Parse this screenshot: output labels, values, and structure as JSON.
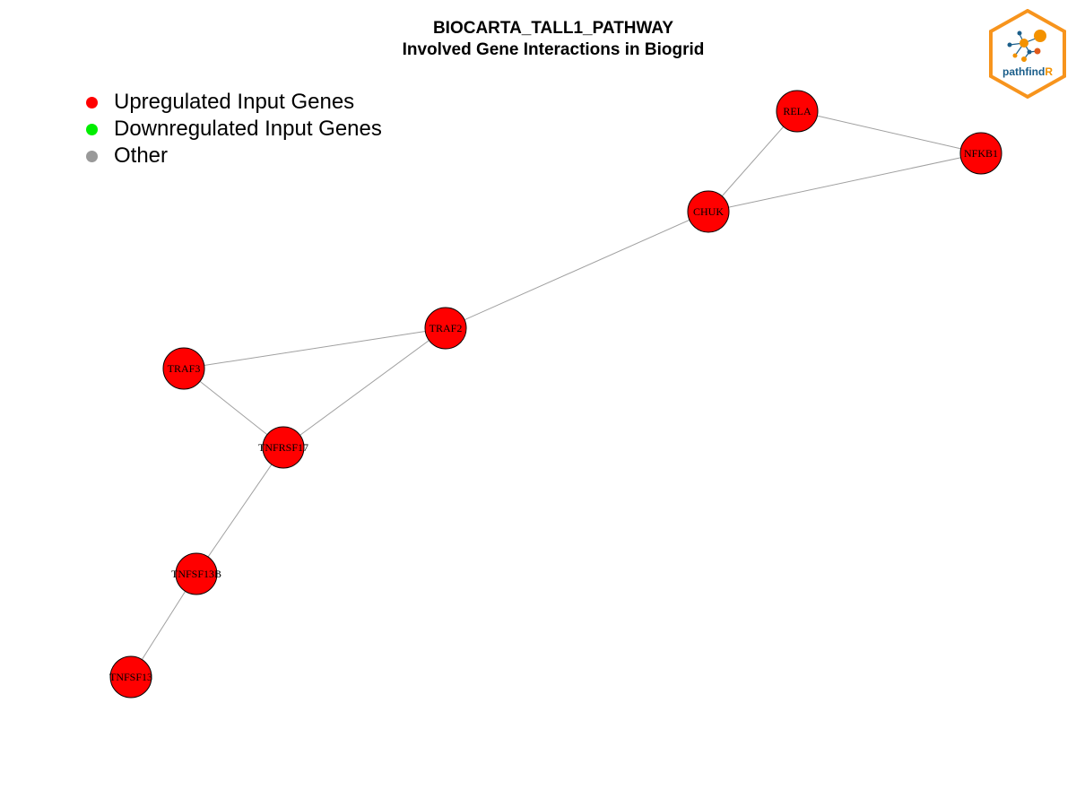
{
  "title_line1": "BIOCARTA_TALL1_PATHWAY",
  "title_line2": "Involved Gene Interactions in Biogrid",
  "legend": [
    {
      "label": "Upregulated Input Genes",
      "color": "#ff0000"
    },
    {
      "label": "Downregulated Input Genes",
      "color": "#00ee00"
    },
    {
      "label": "Other",
      "color": "#999999"
    }
  ],
  "node_color": "#ff0000",
  "edge_color": "#a0a0a0",
  "nodes": [
    "RELA",
    "NFKB1",
    "CHUK",
    "TRAF2",
    "TRAF3",
    "TNFRSF17",
    "TNFSF13B",
    "TNFSF13"
  ],
  "edges": [
    [
      "RELA",
      "NFKB1"
    ],
    [
      "RELA",
      "CHUK"
    ],
    [
      "CHUK",
      "NFKB1"
    ],
    [
      "CHUK",
      "TRAF2"
    ],
    [
      "TRAF2",
      "TRAF3"
    ],
    [
      "TRAF2",
      "TNFRSF17"
    ],
    [
      "TRAF3",
      "TNFRSF17"
    ],
    [
      "TNFRSF17",
      "TNFSF13B"
    ],
    [
      "TNFSF13B",
      "TNFSF13"
    ]
  ],
  "logo": {
    "text_main": "pathfind",
    "text_accent": "R",
    "main_color": "#1b5e8a",
    "accent_color": "#f39200",
    "border_color": "#f7941d"
  }
}
